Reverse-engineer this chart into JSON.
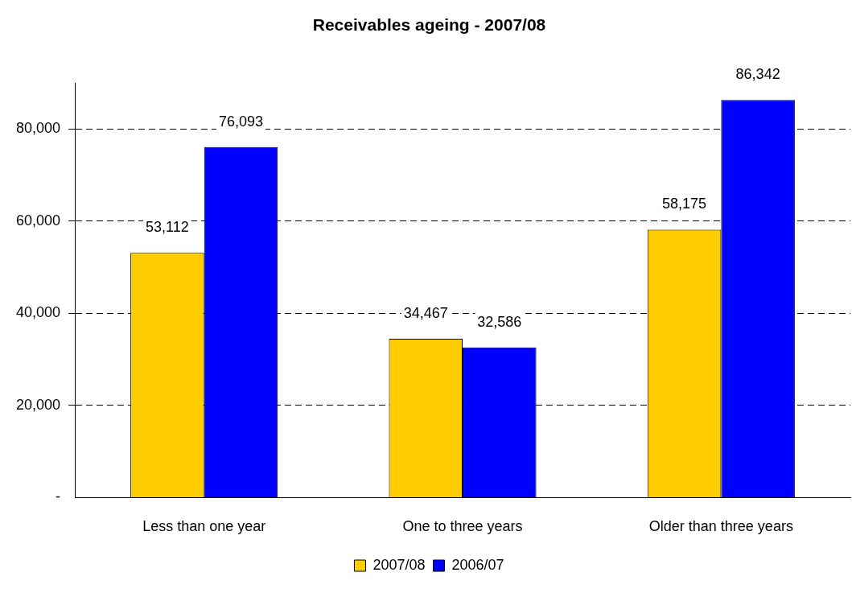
{
  "chart_data": {
    "type": "bar",
    "title": "Receivables ageing - 2007/08",
    "categories": [
      "Less than one year",
      "One to three years",
      "Older than three years"
    ],
    "series": [
      {
        "name": "2007/08",
        "color": "#ffcc00",
        "values": [
          53112,
          34467,
          58175
        ],
        "value_labels": [
          "53,112",
          "34,467",
          "58,175"
        ]
      },
      {
        "name": "2006/07",
        "color": "#0000ff",
        "values": [
          76093,
          32586,
          86342
        ],
        "value_labels": [
          "76,093",
          "32,586",
          "86,342"
        ]
      }
    ],
    "ylim": [
      0,
      90000
    ],
    "yticks": [
      {
        "value": 0,
        "label": "-"
      },
      {
        "value": 20000,
        "label": "20,000"
      },
      {
        "value": 40000,
        "label": "40,000"
      },
      {
        "value": 60000,
        "label": "60,000"
      },
      {
        "value": 80000,
        "label": "80,000"
      }
    ],
    "grid": "y",
    "legend": "bottom"
  }
}
